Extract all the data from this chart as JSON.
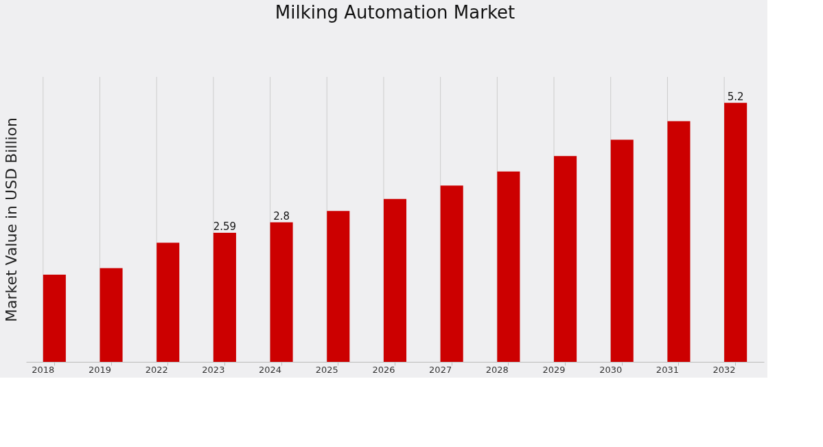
{
  "chart_data": {
    "type": "bar",
    "title": "Milking Automation Market",
    "ylabel": "Market Value in USD Billion",
    "categories": [
      "2018",
      "2019",
      "2022",
      "2023",
      "2024",
      "2025",
      "2026",
      "2027",
      "2028",
      "2029",
      "2030",
      "2031",
      "2032"
    ],
    "values": [
      1.75,
      1.88,
      2.39,
      2.59,
      2.8,
      3.03,
      3.27,
      3.54,
      3.82,
      4.13,
      4.46,
      4.83,
      5.2
    ],
    "value_labels": [
      null,
      null,
      null,
      "2.59",
      "2.8",
      null,
      null,
      null,
      null,
      null,
      null,
      null,
      "5.2"
    ],
    "color": "#cc0000",
    "grid": "x"
  }
}
